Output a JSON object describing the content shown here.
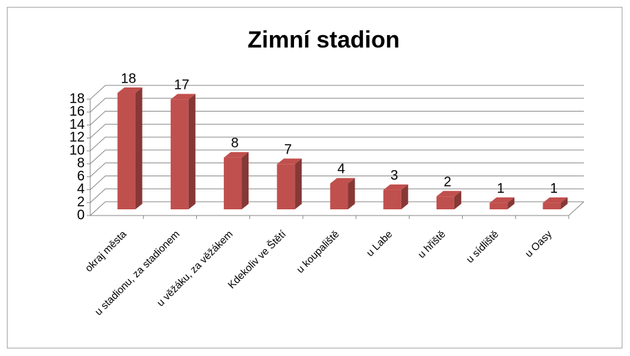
{
  "chart_data": {
    "type": "bar",
    "title": "Zimní stadion",
    "categories": [
      "okraj města",
      "u stadionu, za stadionem",
      "u věžáku, za věžákem",
      "Kdekoliv ve Štětí",
      "u koupaliště",
      "u Labe",
      "u hřiště",
      "u sídliště",
      "u Oasy"
    ],
    "values": [
      18,
      17,
      8,
      7,
      4,
      3,
      2,
      1,
      1
    ],
    "color": "#c0504d",
    "ylim": [
      0,
      18
    ],
    "yticks": [
      0,
      2,
      4,
      6,
      8,
      10,
      12,
      14,
      16,
      18
    ],
    "grid": true
  }
}
